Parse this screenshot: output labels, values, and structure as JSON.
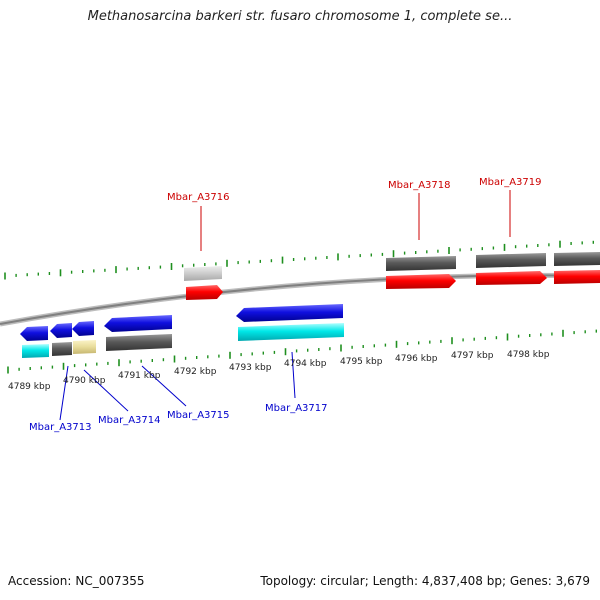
{
  "title": "Methanosarcina barkeri str. fusaro chromosome 1, complete se...",
  "footer": {
    "accession_label": "Accession:",
    "accession": "NC_007355",
    "topology_label": "Topology:",
    "topology": "circular",
    "length_label": "Length:",
    "length": "4,837,408 bp",
    "genes_label": "Genes:",
    "genes": "3,679"
  },
  "colors": {
    "backbone": "#8a8a8a",
    "tick": "#1f8f1f",
    "forward_cds": "#ff0000",
    "forward_gene": "#555555",
    "forward_pseudo": "#cccccc",
    "reverse_cds": "#1010e0",
    "reverse_rna": "#00e8e8",
    "reverse_gene": "#555555",
    "reverse_misc": "#e8dc9a",
    "label_forward": "#cc0000",
    "label_reverse": "#0000cc"
  },
  "kbp_ticks": [
    "4789 kbp",
    "4790 kbp",
    "4791 kbp",
    "4792 kbp",
    "4793 kbp",
    "4794 kbp",
    "4795 kbp",
    "4796 kbp",
    "4797 kbp",
    "4798 kbp"
  ],
  "gene_labels": {
    "forward": [
      "Mbar_A3716",
      "Mbar_A3718",
      "Mbar_A3719"
    ],
    "reverse": [
      "Mbar_A3713",
      "Mbar_A3714",
      "Mbar_A3715",
      "Mbar_A3717"
    ]
  }
}
